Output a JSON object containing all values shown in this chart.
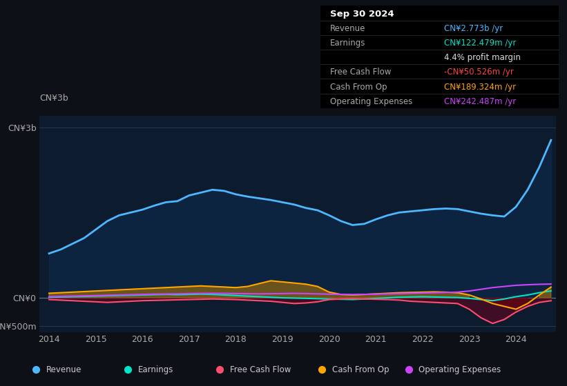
{
  "bg_color": "#0d1117",
  "plot_bg_color": "#0d1b2e",
  "ylabel_top": "CN¥3b",
  "ylim": [
    -600000000,
    3200000000
  ],
  "yticks": [
    -500000000,
    0,
    3000000000
  ],
  "ytick_labels": [
    "-CN¥500m",
    "CN¥0",
    "CN¥3b"
  ],
  "years": [
    2014.0,
    2014.25,
    2014.5,
    2014.75,
    2015.0,
    2015.25,
    2015.5,
    2015.75,
    2016.0,
    2016.25,
    2016.5,
    2016.75,
    2017.0,
    2017.25,
    2017.5,
    2017.75,
    2018.0,
    2018.25,
    2018.5,
    2018.75,
    2019.0,
    2019.25,
    2019.5,
    2019.75,
    2020.0,
    2020.25,
    2020.5,
    2020.75,
    2021.0,
    2021.25,
    2021.5,
    2021.75,
    2022.0,
    2022.25,
    2022.5,
    2022.75,
    2023.0,
    2023.25,
    2023.5,
    2023.75,
    2024.0,
    2024.25,
    2024.5,
    2024.75
  ],
  "revenue": [
    780000000,
    850000000,
    950000000,
    1050000000,
    1200000000,
    1350000000,
    1450000000,
    1500000000,
    1550000000,
    1620000000,
    1680000000,
    1700000000,
    1800000000,
    1850000000,
    1900000000,
    1880000000,
    1820000000,
    1780000000,
    1750000000,
    1720000000,
    1680000000,
    1640000000,
    1580000000,
    1540000000,
    1450000000,
    1350000000,
    1280000000,
    1300000000,
    1380000000,
    1450000000,
    1500000000,
    1520000000,
    1540000000,
    1560000000,
    1570000000,
    1560000000,
    1520000000,
    1480000000,
    1450000000,
    1430000000,
    1600000000,
    1900000000,
    2300000000,
    2773000000
  ],
  "earnings": [
    10000000,
    15000000,
    20000000,
    25000000,
    30000000,
    35000000,
    40000000,
    45000000,
    50000000,
    55000000,
    60000000,
    55000000,
    60000000,
    65000000,
    60000000,
    50000000,
    40000000,
    30000000,
    20000000,
    10000000,
    0,
    -5000000,
    -10000000,
    -15000000,
    -20000000,
    -25000000,
    -30000000,
    -20000000,
    -10000000,
    0,
    10000000,
    15000000,
    20000000,
    15000000,
    10000000,
    5000000,
    -10000000,
    -30000000,
    -50000000,
    -20000000,
    20000000,
    50000000,
    90000000,
    122479000
  ],
  "free_cash_flow": [
    -30000000,
    -40000000,
    -50000000,
    -60000000,
    -70000000,
    -80000000,
    -70000000,
    -60000000,
    -50000000,
    -45000000,
    -40000000,
    -35000000,
    -30000000,
    -25000000,
    -20000000,
    -25000000,
    -30000000,
    -40000000,
    -50000000,
    -60000000,
    -80000000,
    -100000000,
    -90000000,
    -70000000,
    -30000000,
    -20000000,
    -15000000,
    -20000000,
    -25000000,
    -30000000,
    -40000000,
    -60000000,
    -70000000,
    -80000000,
    -90000000,
    -100000000,
    -200000000,
    -350000000,
    -450000000,
    -380000000,
    -250000000,
    -150000000,
    -80000000,
    -50526000
  ],
  "cash_from_op": [
    80000000,
    90000000,
    100000000,
    110000000,
    120000000,
    130000000,
    140000000,
    150000000,
    160000000,
    170000000,
    180000000,
    190000000,
    200000000,
    210000000,
    200000000,
    190000000,
    180000000,
    200000000,
    250000000,
    300000000,
    280000000,
    260000000,
    240000000,
    200000000,
    100000000,
    60000000,
    50000000,
    60000000,
    70000000,
    80000000,
    90000000,
    95000000,
    100000000,
    105000000,
    100000000,
    90000000,
    50000000,
    -20000000,
    -100000000,
    -150000000,
    -200000000,
    -100000000,
    50000000,
    189324000
  ],
  "operating_expenses": [
    20000000,
    25000000,
    30000000,
    35000000,
    40000000,
    45000000,
    50000000,
    55000000,
    60000000,
    65000000,
    68000000,
    70000000,
    75000000,
    78000000,
    80000000,
    78000000,
    75000000,
    72000000,
    70000000,
    72000000,
    75000000,
    78000000,
    75000000,
    70000000,
    65000000,
    60000000,
    58000000,
    60000000,
    65000000,
    70000000,
    75000000,
    80000000,
    85000000,
    90000000,
    95000000,
    100000000,
    120000000,
    150000000,
    180000000,
    200000000,
    220000000,
    230000000,
    238000000,
    242487000
  ],
  "revenue_color": "#4db8ff",
  "earnings_color": "#00e5c8",
  "fcf_color": "#ff4d6d",
  "cashop_color": "#ffa500",
  "opex_color": "#cc44ff",
  "info_rows": [
    {
      "label": "Sep 30 2024",
      "value": "",
      "label_color": "#ffffff",
      "value_color": "#ffffff",
      "bold": true
    },
    {
      "label": "Revenue",
      "value": "CN¥2.773b /yr",
      "label_color": "#aaaaaa",
      "value_color": "#4db8ff",
      "bold": false
    },
    {
      "label": "Earnings",
      "value": "CN¥122.479m /yr",
      "label_color": "#aaaaaa",
      "value_color": "#00e5c8",
      "bold": false
    },
    {
      "label": "",
      "value": "4.4% profit margin",
      "label_color": "#aaaaaa",
      "value_color": "#dddddd",
      "bold": false
    },
    {
      "label": "Free Cash Flow",
      "value": "-CN¥50.526m /yr",
      "label_color": "#aaaaaa",
      "value_color": "#ff4444",
      "bold": false
    },
    {
      "label": "Cash From Op",
      "value": "CN¥189.324m /yr",
      "label_color": "#aaaaaa",
      "value_color": "#ffa500",
      "bold": false
    },
    {
      "label": "Operating Expenses",
      "value": "CN¥242.487m /yr",
      "label_color": "#aaaaaa",
      "value_color": "#cc44ff",
      "bold": false
    }
  ],
  "legend_items": [
    {
      "label": "Revenue",
      "color": "#4db8ff"
    },
    {
      "label": "Earnings",
      "color": "#00e5c8"
    },
    {
      "label": "Free Cash Flow",
      "color": "#ff4d6d"
    },
    {
      "label": "Cash From Op",
      "color": "#ffa500"
    },
    {
      "label": "Operating Expenses",
      "color": "#cc44ff"
    }
  ]
}
